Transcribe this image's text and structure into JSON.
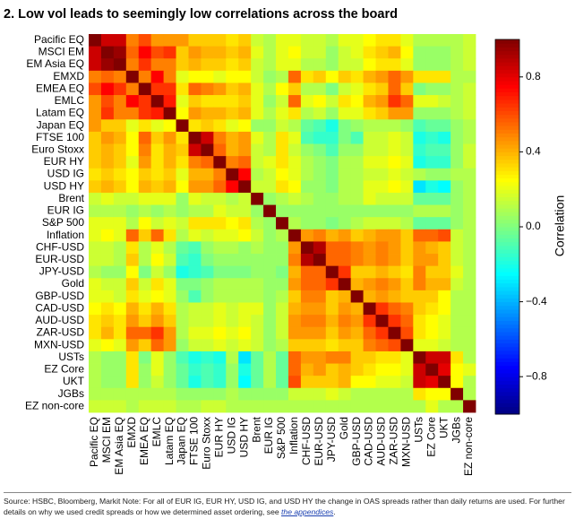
{
  "chart_data": {
    "type": "heatmap",
    "title": "2. Low vol leads to seemingly low correlations across the board",
    "categories": [
      "Pacific EQ",
      "MSCI EM",
      "EM Asia EQ",
      "EMXD",
      "EMEA EQ",
      "EMLC",
      "Latam EQ",
      "Japan EQ",
      "FTSE 100",
      "Euro Stoxx",
      "EUR HY",
      "USD IG",
      "USD HY",
      "Brent",
      "EUR IG",
      "S&P 500",
      "Inflation",
      "CHF-USD",
      "EUR-USD",
      "JPY-USD",
      "Gold",
      "GBP-USD",
      "CAD-USD",
      "AUD-USD",
      "ZAR-USD",
      "MXN-USD",
      "USTs",
      "EZ Core",
      "UKT",
      "JGBs",
      "EZ non-core"
    ],
    "values": [
      [
        1
      ],
      [
        0.85,
        1
      ],
      [
        0.85,
        0.95,
        1
      ],
      [
        0.5,
        0.55,
        0.5,
        1
      ],
      [
        0.6,
        0.75,
        0.65,
        0.5,
        1
      ],
      [
        0.45,
        0.6,
        0.5,
        0.75,
        0.65,
        1
      ],
      [
        0.45,
        0.65,
        0.5,
        0.5,
        0.65,
        0.7,
        1
      ],
      [
        0.45,
        0.35,
        0.35,
        0.2,
        0.3,
        0.2,
        0.25,
        1
      ],
      [
        0.35,
        0.45,
        0.4,
        0.25,
        0.55,
        0.35,
        0.45,
        0.3,
        1
      ],
      [
        0.35,
        0.4,
        0.35,
        0.25,
        0.5,
        0.3,
        0.4,
        0.35,
        0.85,
        1
      ],
      [
        0.35,
        0.4,
        0.35,
        0.2,
        0.45,
        0.3,
        0.4,
        0.3,
        0.5,
        0.55,
        1
      ],
      [
        0.3,
        0.35,
        0.3,
        0.25,
        0.35,
        0.3,
        0.35,
        0.2,
        0.4,
        0.4,
        0.5,
        1
      ],
      [
        0.35,
        0.4,
        0.35,
        0.25,
        0.4,
        0.35,
        0.4,
        0.25,
        0.45,
        0.45,
        0.55,
        0.75,
        1
      ],
      [
        0.15,
        0.2,
        0.15,
        0.15,
        0.2,
        0.2,
        0.2,
        0.05,
        0.2,
        0.15,
        0.15,
        0.1,
        0.15,
        1
      ],
      [
        0.1,
        0.1,
        0.1,
        0.05,
        0.1,
        0.05,
        0.1,
        0.05,
        0.1,
        0.1,
        0.2,
        0.15,
        0.15,
        0.05,
        1
      ],
      [
        0.2,
        0.2,
        0.2,
        0.1,
        0.25,
        0.15,
        0.2,
        0.15,
        0.3,
        0.3,
        0.3,
        0.25,
        0.3,
        0.1,
        0.05,
        1
      ],
      [
        0.2,
        0.25,
        0.2,
        0.55,
        0.35,
        0.55,
        0.3,
        0.1,
        0.2,
        0.15,
        0.2,
        0.2,
        0.25,
        0.15,
        0.05,
        0.1,
        1
      ],
      [
        0.15,
        0.15,
        0.1,
        0.3,
        0.1,
        0.2,
        0.1,
        -0.05,
        -0.1,
        0.05,
        0.1,
        0.1,
        0.05,
        0.1,
        0.05,
        0.05,
        0.45,
        1
      ],
      [
        0.15,
        0.15,
        0.1,
        0.35,
        0.1,
        0.25,
        0.15,
        -0.1,
        -0.15,
        0.0,
        0.05,
        0.05,
        0.05,
        0.05,
        0.05,
        0.05,
        0.5,
        0.9,
        1
      ],
      [
        0.1,
        0.05,
        0.05,
        0.25,
        0.0,
        0.15,
        0.05,
        -0.2,
        -0.15,
        -0.1,
        0.0,
        0.0,
        0.0,
        0.05,
        0.05,
        0.0,
        0.4,
        0.55,
        0.55,
        1
      ],
      [
        0.2,
        0.15,
        0.15,
        0.35,
        0.15,
        0.3,
        0.2,
        0.0,
        0.0,
        0.05,
        0.1,
        0.1,
        0.1,
        0.1,
        0.05,
        0.05,
        0.45,
        0.55,
        0.55,
        0.65,
        1
      ],
      [
        0.2,
        0.2,
        0.15,
        0.3,
        0.2,
        0.25,
        0.2,
        0.05,
        -0.1,
        0.05,
        0.1,
        0.1,
        0.1,
        0.1,
        0.05,
        0.1,
        0.35,
        0.5,
        0.5,
        0.35,
        0.4,
        1
      ],
      [
        0.25,
        0.3,
        0.25,
        0.4,
        0.3,
        0.4,
        0.3,
        0.1,
        0.15,
        0.15,
        0.2,
        0.15,
        0.2,
        0.2,
        0.05,
        0.15,
        0.4,
        0.45,
        0.45,
        0.35,
        0.45,
        0.4,
        1
      ],
      [
        0.3,
        0.35,
        0.3,
        0.45,
        0.35,
        0.45,
        0.35,
        0.1,
        0.15,
        0.15,
        0.2,
        0.15,
        0.2,
        0.15,
        0.05,
        0.15,
        0.45,
        0.5,
        0.5,
        0.4,
        0.5,
        0.45,
        0.65,
        1
      ],
      [
        0.3,
        0.4,
        0.3,
        0.55,
        0.55,
        0.65,
        0.45,
        0.1,
        0.2,
        0.2,
        0.25,
        0.2,
        0.25,
        0.15,
        0.05,
        0.15,
        0.45,
        0.45,
        0.45,
        0.35,
        0.45,
        0.4,
        0.55,
        0.65,
        1
      ],
      [
        0.2,
        0.25,
        0.2,
        0.45,
        0.35,
        0.55,
        0.45,
        0.05,
        0.15,
        0.15,
        0.2,
        0.15,
        0.2,
        0.15,
        0.05,
        0.1,
        0.35,
        0.35,
        0.35,
        0.3,
        0.35,
        0.35,
        0.5,
        0.55,
        0.6,
        1
      ],
      [
        0.1,
        0.05,
        0.05,
        0.3,
        0.0,
        0.2,
        0.05,
        -0.1,
        -0.2,
        -0.15,
        -0.2,
        0.1,
        -0.3,
        -0.05,
        0.1,
        -0.05,
        0.55,
        0.45,
        0.45,
        0.5,
        0.5,
        0.35,
        0.35,
        0.3,
        0.3,
        0.2,
        1
      ],
      [
        0.1,
        0.05,
        0.05,
        0.3,
        0.05,
        0.2,
        0.05,
        -0.05,
        -0.15,
        -0.1,
        -0.15,
        0.05,
        -0.2,
        -0.05,
        0.1,
        -0.05,
        0.55,
        0.4,
        0.45,
        0.35,
        0.4,
        0.35,
        0.3,
        0.25,
        0.25,
        0.2,
        0.85,
        1
      ],
      [
        0.1,
        0.05,
        0.05,
        0.3,
        0.05,
        0.15,
        0.05,
        -0.05,
        -0.2,
        -0.1,
        -0.15,
        0.05,
        -0.25,
        -0.05,
        0.1,
        -0.05,
        0.6,
        0.35,
        0.35,
        0.35,
        0.4,
        0.25,
        0.25,
        0.2,
        0.2,
        0.15,
        0.85,
        0.8,
        1
      ],
      [
        0.1,
        0.1,
        0.1,
        0.1,
        0.1,
        0.1,
        0.1,
        0.05,
        0.05,
        0.05,
        0.05,
        0.1,
        0.05,
        0.05,
        0.05,
        0.05,
        0.15,
        0.15,
        0.15,
        0.2,
        0.15,
        0.1,
        0.1,
        0.1,
        0.1,
        0.1,
        0.3,
        0.25,
        0.25,
        1
      ],
      [
        0.15,
        0.15,
        0.15,
        0.1,
        0.15,
        0.15,
        0.15,
        0.1,
        0.1,
        0.15,
        0.15,
        0.1,
        0.1,
        0.1,
        0.1,
        0.1,
        0.1,
        0.1,
        0.1,
        0.1,
        0.1,
        0.1,
        0.1,
        0.1,
        0.1,
        0.1,
        0.1,
        0.2,
        0.1,
        0.1,
        1
      ]
    ],
    "colormap": "jet",
    "colorbar_label": "Correlation",
    "clim": [
      -1,
      1
    ],
    "cticks": [
      {
        "value": -0.8,
        "label": "−0.8"
      },
      {
        "value": -0.4,
        "label": "−0.4"
      },
      {
        "value": 0,
        "label": "0.0"
      },
      0.4,
      0.8
    ]
  },
  "footer": {
    "text": "Source: HSBC, Bloomberg, Markit  Note: For all of EUR IG, EUR HY, USD IG, and USD HY the change in OAS spreads rather than daily returns are used. For further details on why we used credit spreads or how we determined asset ordering, see ",
    "link": "the appendices",
    "end": "."
  }
}
